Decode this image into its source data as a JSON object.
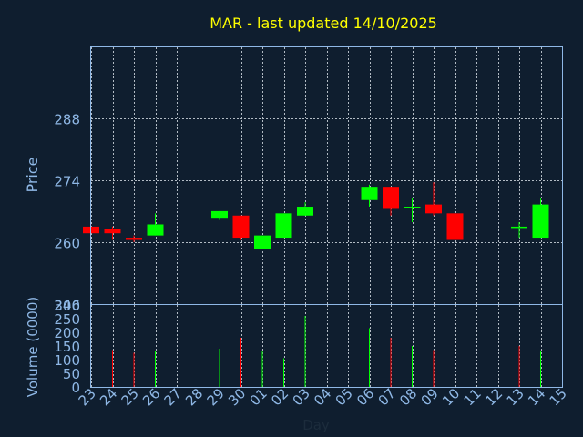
{
  "chart_data": [
    {
      "type": "candlestick",
      "title": "MAR - last updated 14/10/2025",
      "ylabel": "Price",
      "ylim": [
        246,
        304
      ],
      "yticks": [
        246,
        260,
        274,
        288
      ],
      "grid": true,
      "x_tick_labels": [
        "23",
        "24",
        "25",
        "26",
        "27",
        "28",
        "29",
        "30",
        "01",
        "02",
        "03",
        "04",
        "05",
        "06",
        "07",
        "08",
        "09",
        "10",
        "11",
        "12",
        "13",
        "14",
        "15"
      ],
      "candles": [
        {
          "day": "23",
          "open": 263.5,
          "close": 262.0,
          "high": 263.5,
          "low": 262.0
        },
        {
          "day": "24",
          "open": 263.0,
          "close": 262.0,
          "high": 263.5,
          "low": 260.5
        },
        {
          "day": "25",
          "open": 261.0,
          "close": 260.5,
          "high": 261.5,
          "low": 260.0
        },
        {
          "day": "26",
          "open": 261.5,
          "close": 264.0,
          "high": 266.5,
          "low": 261.5
        },
        {
          "day": "29",
          "open": 265.5,
          "close": 267.0,
          "high": 267.0,
          "low": 265.0
        },
        {
          "day": "30",
          "open": 266.0,
          "close": 261.0,
          "high": 266.0,
          "low": 260.5
        },
        {
          "day": "01",
          "open": 258.5,
          "close": 261.5,
          "high": 261.5,
          "low": 258.5
        },
        {
          "day": "02",
          "open": 261.0,
          "close": 266.5,
          "high": 266.5,
          "low": 261.0
        },
        {
          "day": "03",
          "open": 266.0,
          "close": 268.0,
          "high": 269.0,
          "low": 266.0
        },
        {
          "day": "06",
          "open": 269.5,
          "close": 272.5,
          "high": 273.0,
          "low": 268.0
        },
        {
          "day": "07",
          "open": 272.5,
          "close": 267.5,
          "high": 272.5,
          "low": 266.0
        },
        {
          "day": "08",
          "open": 268.0,
          "close": 268.0,
          "high": 270.0,
          "low": 264.5
        },
        {
          "day": "09",
          "open": 268.5,
          "close": 266.5,
          "high": 273.5,
          "low": 266.0
        },
        {
          "day": "10",
          "open": 266.5,
          "close": 260.5,
          "high": 270.5,
          "low": 260.5
        },
        {
          "day": "13",
          "open": 263.5,
          "close": 263.5,
          "high": 264.5,
          "low": 261.0
        },
        {
          "day": "14",
          "open": 261.0,
          "close": 268.5,
          "high": 270.0,
          "low": 261.0
        }
      ],
      "colors": {
        "up": "#00ff00",
        "down": "#ff0000",
        "background": "#0f1e2f",
        "title": "#ffff00",
        "axis": "#8fb8e6",
        "grid": "#d0d8e0"
      }
    },
    {
      "type": "bar",
      "xlabel": "Day",
      "ylabel": "Volume (0000)",
      "ylim": [
        0,
        300
      ],
      "yticks": [
        0,
        50,
        100,
        150,
        200,
        250,
        300
      ],
      "volumes": [
        {
          "day": "24",
          "value": 135,
          "direction": "down"
        },
        {
          "day": "25",
          "value": 125,
          "direction": "down"
        },
        {
          "day": "26",
          "value": 130,
          "direction": "up"
        },
        {
          "day": "29",
          "value": 140,
          "direction": "up"
        },
        {
          "day": "30",
          "value": 180,
          "direction": "down"
        },
        {
          "day": "01",
          "value": 130,
          "direction": "up"
        },
        {
          "day": "02",
          "value": 105,
          "direction": "up"
        },
        {
          "day": "03",
          "value": 260,
          "direction": "up"
        },
        {
          "day": "06",
          "value": 215,
          "direction": "up"
        },
        {
          "day": "07",
          "value": 180,
          "direction": "down"
        },
        {
          "day": "08",
          "value": 150,
          "direction": "up"
        },
        {
          "day": "09",
          "value": 135,
          "direction": "down"
        },
        {
          "day": "10",
          "value": 180,
          "direction": "down"
        },
        {
          "day": "13",
          "value": 150,
          "direction": "down"
        },
        {
          "day": "14",
          "value": 130,
          "direction": "up"
        }
      ]
    }
  ]
}
